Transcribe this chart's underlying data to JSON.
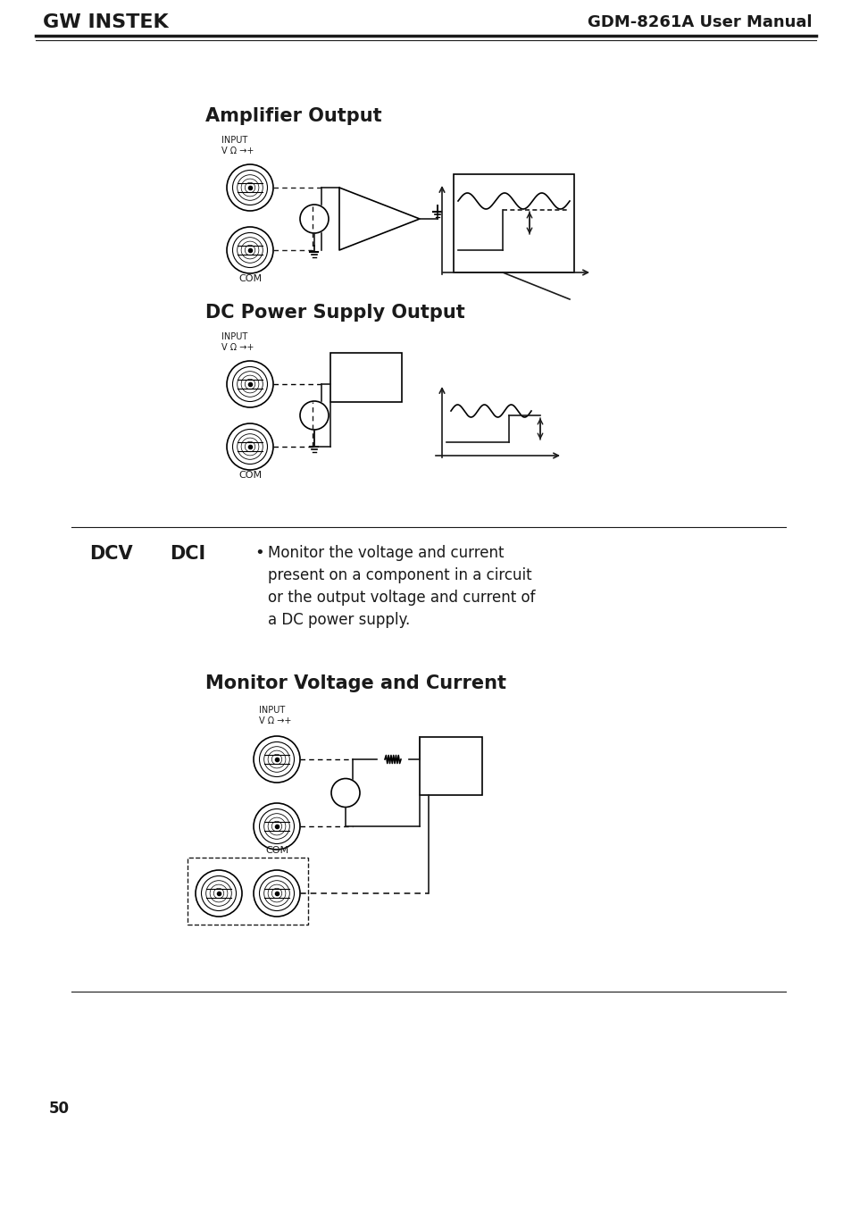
{
  "page_title_left": "GW INSTEK",
  "page_title_right": "GDM-8261A User Manual",
  "page_number": "50",
  "section1_title": "Amplifier Output",
  "section2_title": "DC Power Supply Output",
  "section3_title": "Monitor Voltage and Current",
  "input_label": "INPUT\nV Ω →+",
  "com_label": "COM",
  "dcv_label": "DCV",
  "dci_label": "DCI",
  "bullet_text": "Monitor the voltage and current\npresent on a component in a circuit\nor the output voltage and current of\na DC power supply.",
  "bg_color": "#ffffff",
  "text_color": "#1a1a1a",
  "line_color": "#1a1a1a"
}
